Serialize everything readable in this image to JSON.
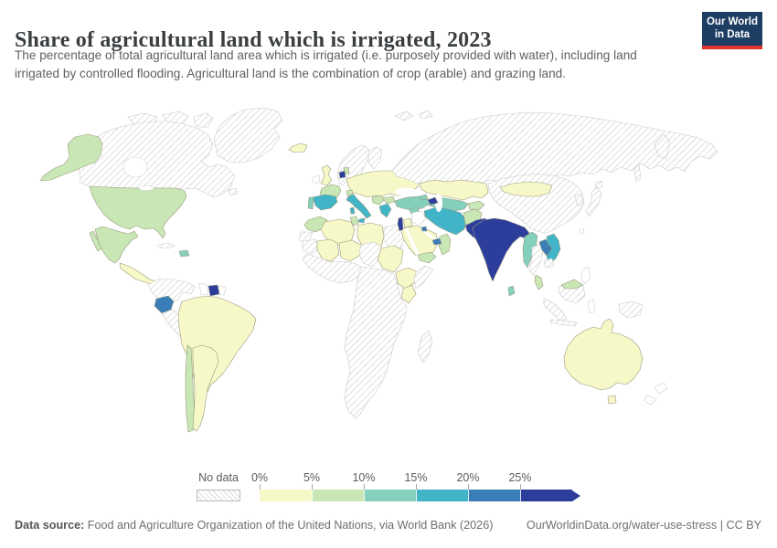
{
  "header": {
    "title": "Share of agricultural land which is irrigated, 2023",
    "subtitle": "The percentage of total agricultural land area which is irrigated (i.e. purposely provided with water), including land irrigated by controlled flooding. Agricultural land is the combination of crop (arable) and grazing land.",
    "logo": {
      "line1": "Our World",
      "line2": "in Data",
      "bg": "#1d3d63",
      "accent": "#e0342c"
    }
  },
  "footer": {
    "data_source_label": "Data source:",
    "data_source_text": " Food and Agriculture Organization of the United Nations, via World Bank (2026)",
    "link_text": "OurWorldinData.org/water-use-stress | CC BY"
  },
  "chart_data": {
    "type": "choropleth-map",
    "title": "Share of agricultural land which is irrigated, 2023",
    "year": "2023",
    "unit": "% of agricultural land",
    "legend": {
      "no_data_label": "No data",
      "ticks": [
        "0%",
        "5%",
        "10%",
        "15%",
        "20%",
        "25%"
      ],
      "bin_order": [
        "0-5%",
        "5-10%",
        "10-15%",
        "15-20%",
        "20-25%",
        "25%+"
      ],
      "bin_colors": {
        "0-5%": "#f7f8c7",
        "5-10%": "#c9e7b4",
        "10-15%": "#85d0bd",
        "15-20%": "#41b5c7",
        "20-25%": "#3a7eb8",
        "25%+": "#2c3d9c",
        "none": "#ffffff"
      },
      "no_data_pattern": "diagonal-hatch"
    },
    "regions": {
      "greenland": "no_data",
      "canada": "no_data",
      "canada-arctic-islands": "no_data",
      "newfoundland": "no_data",
      "alaska": "5-10%",
      "usa": "5-10%",
      "mexico": "5-10%",
      "baja": "5-10%",
      "central-america": "0-5%",
      "cuba": "no_data",
      "hispaniola": "10-15%",
      "colombia-venezuela": "no_data",
      "guyana": "none",
      "suriname": "25%+",
      "french-guiana": "none",
      "ecuador": "20-25%",
      "peru": "no_data",
      "brazil": "0-5%",
      "chile": "5-10%",
      "argentina": "0-5%",
      "iceland": "0-5%",
      "uk": "0-5%",
      "ireland": "none",
      "scandinavia": "no_data",
      "finland": "no_data",
      "denmark": "5-10%",
      "netherlands": "25%+",
      "central-europe": "0-5%",
      "france": "5-10%",
      "spain": "15-20%",
      "portugal": "10-15%",
      "switzerland": "5-10%",
      "italy": "15-20%",
      "balkans": "5-10%",
      "bulgaria": "5-10%",
      "greece": "15-20%",
      "russia": "no_data",
      "kamchatka": "no_data",
      "sakhalin": "no_data",
      "svalbard": "no_data",
      "turkey": "10-15%",
      "georgia": "10-15%",
      "azerbaijan": "25%+",
      "syria": "10-15%",
      "israel": "25%+",
      "jordan": "0-5%",
      "iraq": "none",
      "saudi-arabia": "0-5%",
      "yemen": "5-10%",
      "oman": "5-10%",
      "uae": "20-25%",
      "kuwait": "20-25%",
      "iran": "15-20%",
      "kazakhstan": "0-5%",
      "uzbekistan-turkmenistan": "10-15%",
      "kyrgyzstan-tajikistan": "5-10%",
      "afghanistan": "5-10%",
      "pakistan": "25%+",
      "india": "25%+",
      "sri-lanka": "10-15%",
      "china": "no_data",
      "mongolia": "0-5%",
      "korea": "no_data",
      "japan": "no_data",
      "taiwan": "none",
      "myanmar": "10-15%",
      "thailand": "no_data",
      "laos": "20-25%",
      "vietnam": "15-20%",
      "cambodia": "no_data",
      "malaysia": "5-10%",
      "borneo": "no_data",
      "malaysia-borneo": "5-10%",
      "indonesia-sumatra": "no_data",
      "indonesia-java": "no_data",
      "sulawesi": "none",
      "philippines": "none",
      "papua-new-guinea": "no_data",
      "australia": "0-5%",
      "tasmania": "0-5%",
      "new-zealand": "none",
      "morocco": "5-10%",
      "western-sahara": "no_data",
      "algeria": "0-5%",
      "tunisia": "5-10%",
      "libya": "0-5%",
      "egypt": "no_data",
      "mauritania": "no_data",
      "mali": "0-5%",
      "niger": "0-5%",
      "chad": "no_data",
      "sudan": "0-5%",
      "ethiopia": "0-5%",
      "somalia": "no_data",
      "kenya": "0-5%",
      "west-africa": "no_data",
      "central-southern-africa": "no_data",
      "madagascar": "no_data"
    }
  }
}
